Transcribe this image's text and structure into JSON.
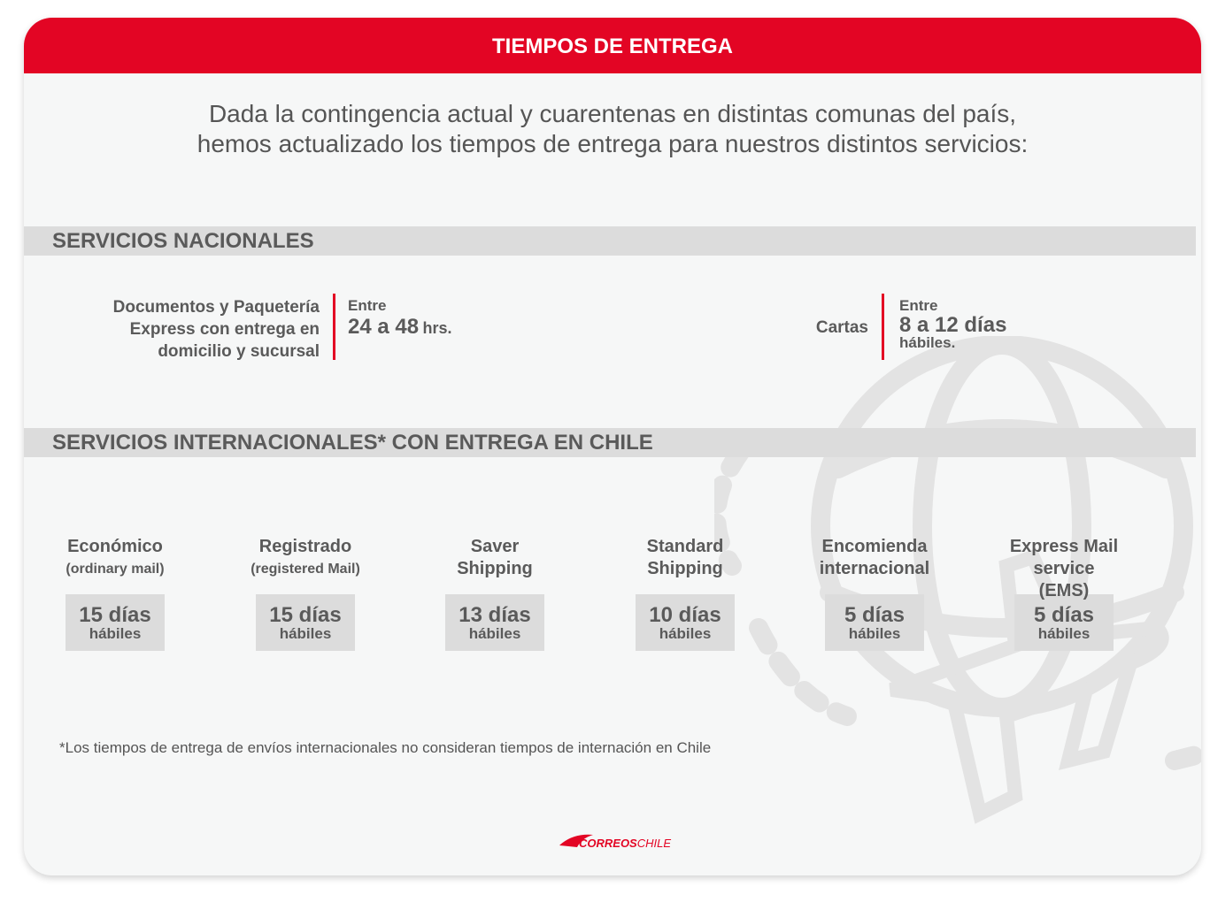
{
  "header": {
    "title": "TIEMPOS DE ENTREGA"
  },
  "intro": {
    "line1": "Dada la contingencia actual y cuarentenas en distintas comunas del país,",
    "line2": "hemos actualizado los tiempos de entrega para nuestros distintos servicios:"
  },
  "nacionales": {
    "title": "SERVICIOS NACIONALES",
    "docs": {
      "label1": "Documentos y Paquetería",
      "label2": "Express con entrega en",
      "label3": "domicilio y sucursal",
      "pre": "Entre",
      "value": "24 a 48",
      "unit": "hrs."
    },
    "cartas": {
      "label": "Cartas",
      "pre": "Entre",
      "value": "8 a 12 días",
      "unit": "hábiles."
    }
  },
  "internacionales": {
    "title": "SERVICIOS INTERNACIONALES* CON ENTREGA EN CHILE",
    "services": [
      {
        "name": "Económico",
        "sub": "(ordinary mail)",
        "days": "15 días",
        "unit": "hábiles"
      },
      {
        "name": "Registrado",
        "sub": "(registered Mail)",
        "days": "15 días",
        "unit": "hábiles"
      },
      {
        "name": "Saver Shipping",
        "sub": "",
        "days": "13 días",
        "unit": "hábiles"
      },
      {
        "name": "Standard Shipping",
        "sub": "",
        "days": "10 días",
        "unit": "hábiles"
      },
      {
        "name": "Encomienda internacional",
        "sub": "",
        "days": "5 días",
        "unit": "hábiles"
      },
      {
        "name": "Express Mail service (EMS)",
        "sub": "",
        "days": "5 días",
        "unit": "hábiles"
      }
    ]
  },
  "footnote": "*Los tiempos de entrega de envíos internacionales no consideran tiempos de internación en Chile",
  "logo": {
    "text": "CORREOSCHILE"
  },
  "colors": {
    "brand": "#e30524",
    "bar": "#dcdcdc",
    "text": "#5a5a5a"
  }
}
